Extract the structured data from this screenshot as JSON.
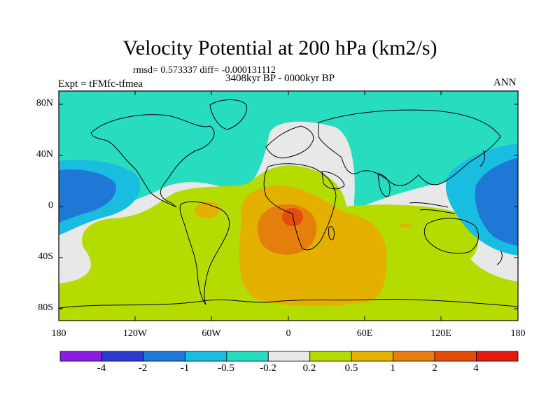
{
  "title": "Velocity Potential at 200 hPa (km2/s)",
  "stats": "rmsd= 0.573337 diff= -0.000131112",
  "period": "3408kyr BP - 0000kyr BP",
  "experiment": "Expt = tFMfc-tfmea",
  "season": "ANN",
  "y_axis_labels": [
    "80N",
    "40N",
    "0",
    "40S",
    "80S"
  ],
  "x_axis_labels": [
    "180",
    "120W",
    "60W",
    "0",
    "60E",
    "120E",
    "180"
  ],
  "colorbar": {
    "labels": [
      "-4",
      "-2",
      "-1",
      "-0.5",
      "-0.2",
      "0.2",
      "0.5",
      "1",
      "2",
      "4"
    ],
    "colors": [
      "#8a1ee0",
      "#2a3ccf",
      "#1f78d6",
      "#18bde0",
      "#28dcc0",
      "#e8e8e8",
      "#b4dc00",
      "#e4b000",
      "#e47e0c",
      "#e44c0c",
      "#e41a0c"
    ]
  },
  "map_colors": {
    "neg_strong": "#1f78d6",
    "neg_medium": "#18bde0",
    "neg_weak": "#28dcc0",
    "neutral": "#e8e8e8",
    "pos_weak": "#b4dc00",
    "pos_medium": "#e4b000",
    "pos_strong": "#e47e0c",
    "pos_max": "#e44c0c"
  }
}
